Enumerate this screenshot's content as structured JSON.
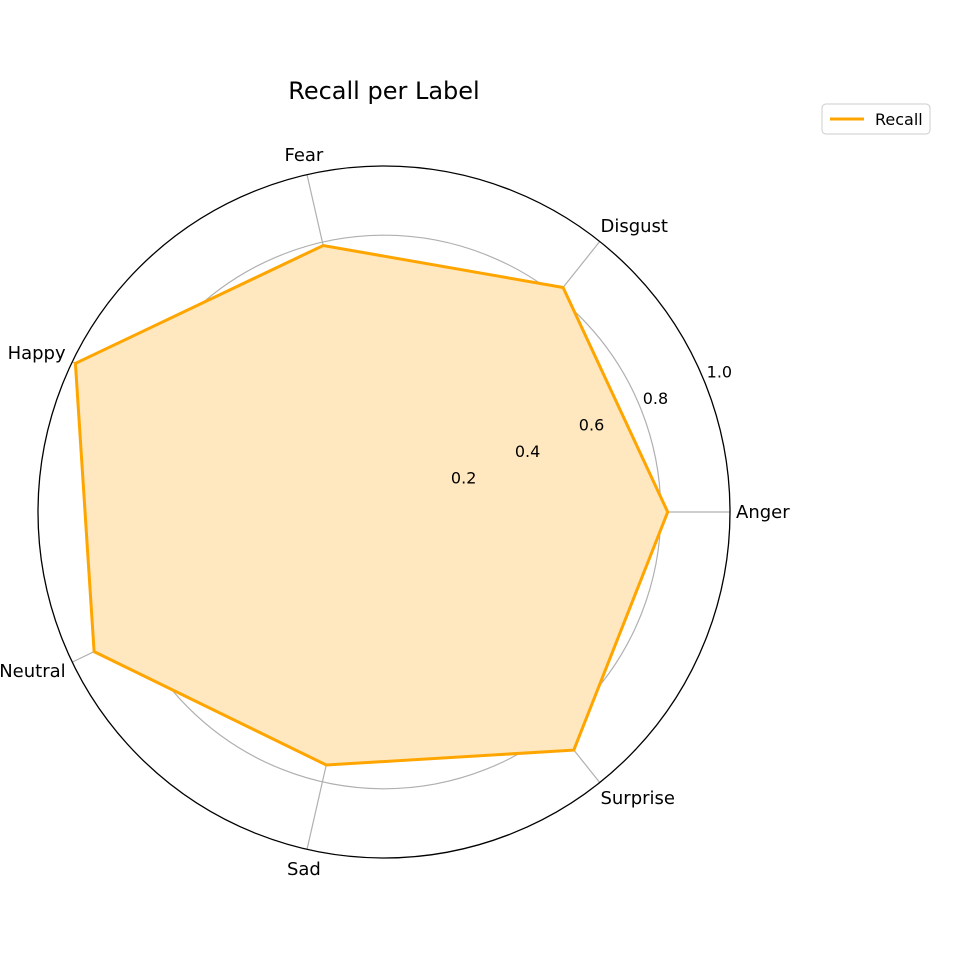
{
  "chart_data": {
    "type": "radar",
    "title": "Recall per Label",
    "categories": [
      "Anger",
      "Disgust",
      "Fear",
      "Happy",
      "Neutral",
      "Sad",
      "Surprise"
    ],
    "series": [
      {
        "name": "Recall",
        "values": [
          0.82,
          0.83,
          0.79,
          0.99,
          0.93,
          0.75,
          0.88
        ]
      }
    ],
    "rlim": [
      0,
      1.0
    ],
    "r_ticks": [
      0.2,
      0.4,
      0.6,
      0.8,
      1.0
    ],
    "r_tick_labels": [
      "0.2",
      "0.4",
      "0.6",
      "0.8",
      "1.0"
    ],
    "grid": true,
    "legend_position": "top-right",
    "colors": {
      "series_line": "#ffa500",
      "series_fill": "#ffe7c0",
      "grid": "#b0b0b0",
      "outer_circle": "#000000"
    }
  }
}
